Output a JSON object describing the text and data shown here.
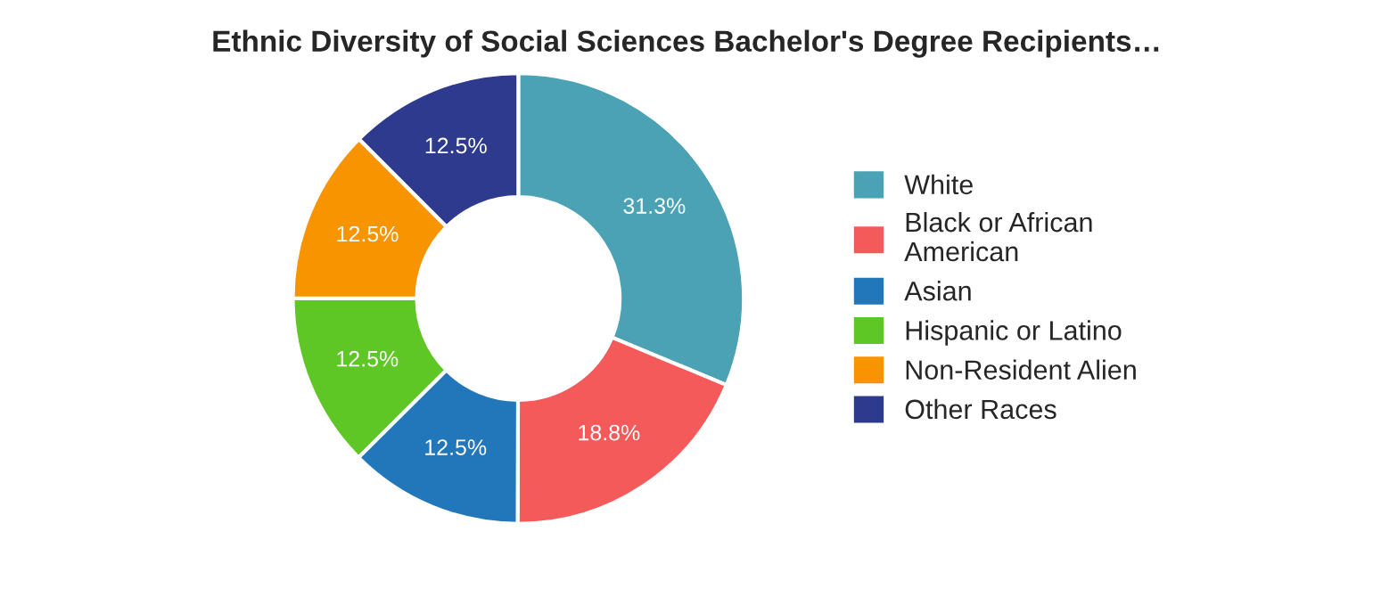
{
  "chart_data": {
    "type": "donut",
    "title": "Ethnic Diversity of Social Sciences Bachelor's Degree Recipients…",
    "categories": [
      "White",
      "Black or African\nAmerican",
      "Asian",
      "Hispanic or Latino",
      "Non-Resident Alien",
      "Other Races"
    ],
    "values": [
      31.3,
      18.8,
      12.5,
      12.5,
      12.5,
      12.5
    ],
    "value_labels": [
      "31.3%",
      "18.8%",
      "12.5%",
      "12.5%",
      "12.5%",
      "12.5%"
    ],
    "colors": [
      "#4aa2b4",
      "#f55a5a",
      "#2277bb",
      "#5ec726",
      "#f79400",
      "#2e3a8e"
    ],
    "legend": "right"
  }
}
